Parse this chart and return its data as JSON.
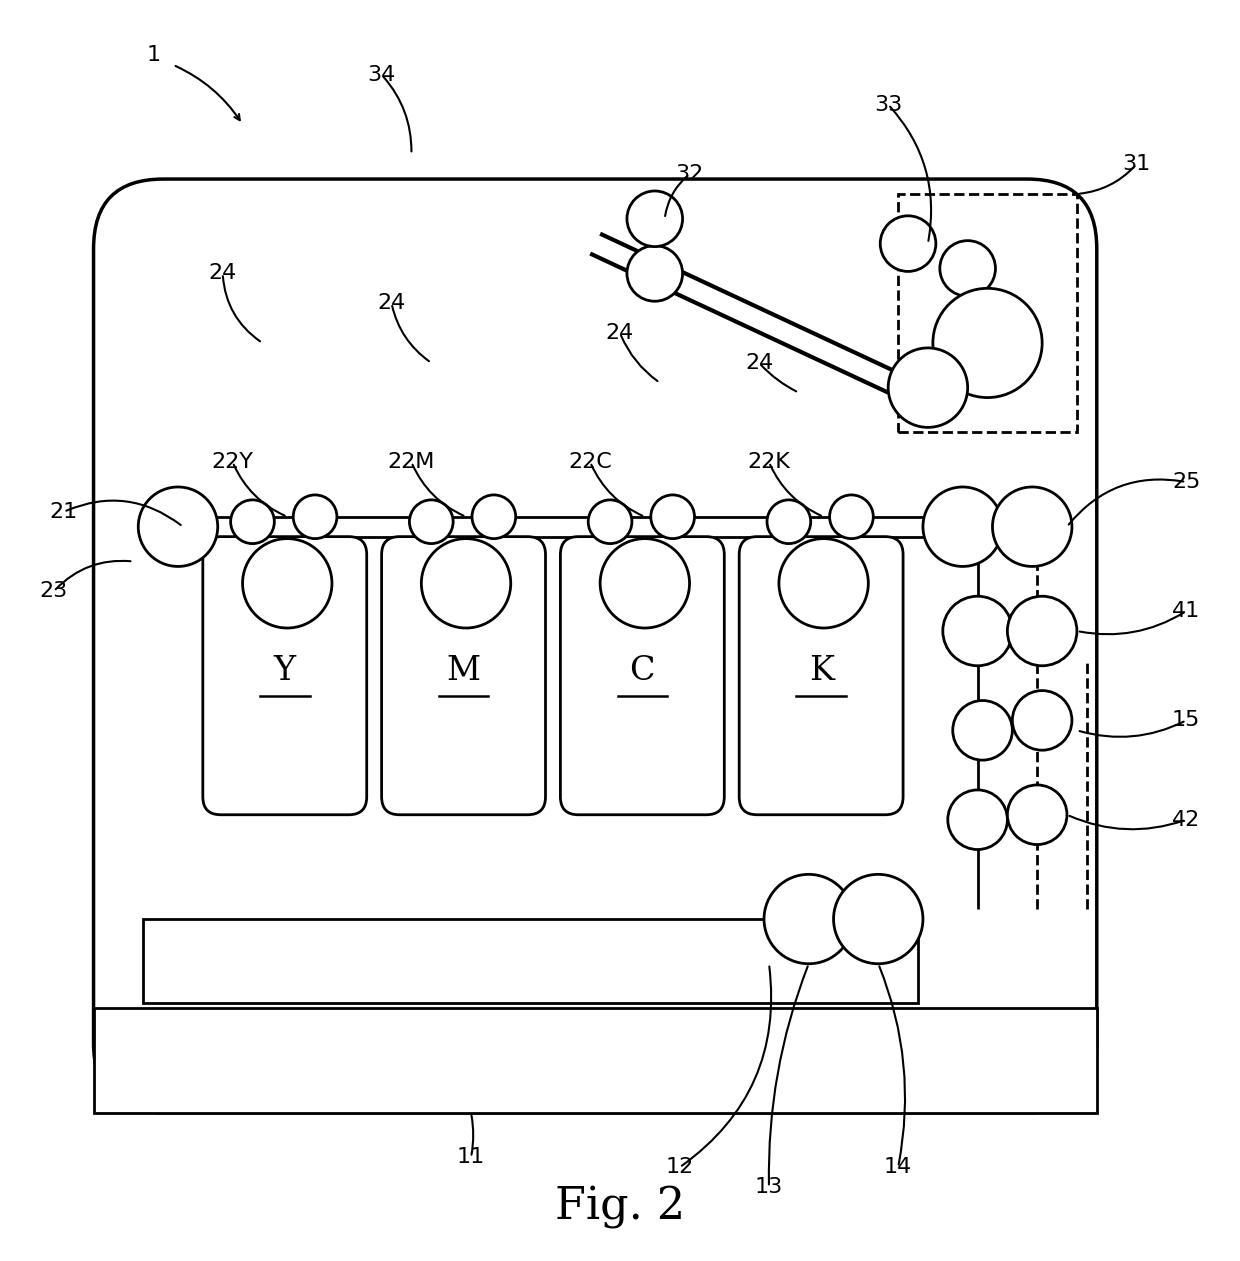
{
  "fig_label": "Fig. 2",
  "fig_label_fontsize": 32,
  "bg": "#ffffff",
  "lc": "#000000",
  "lw": 2.0,
  "label_fs": 16,
  "units": [
    "Y",
    "M",
    "C",
    "K"
  ],
  "unit_codes": [
    "22Y",
    "22M",
    "22C",
    "22K"
  ]
}
